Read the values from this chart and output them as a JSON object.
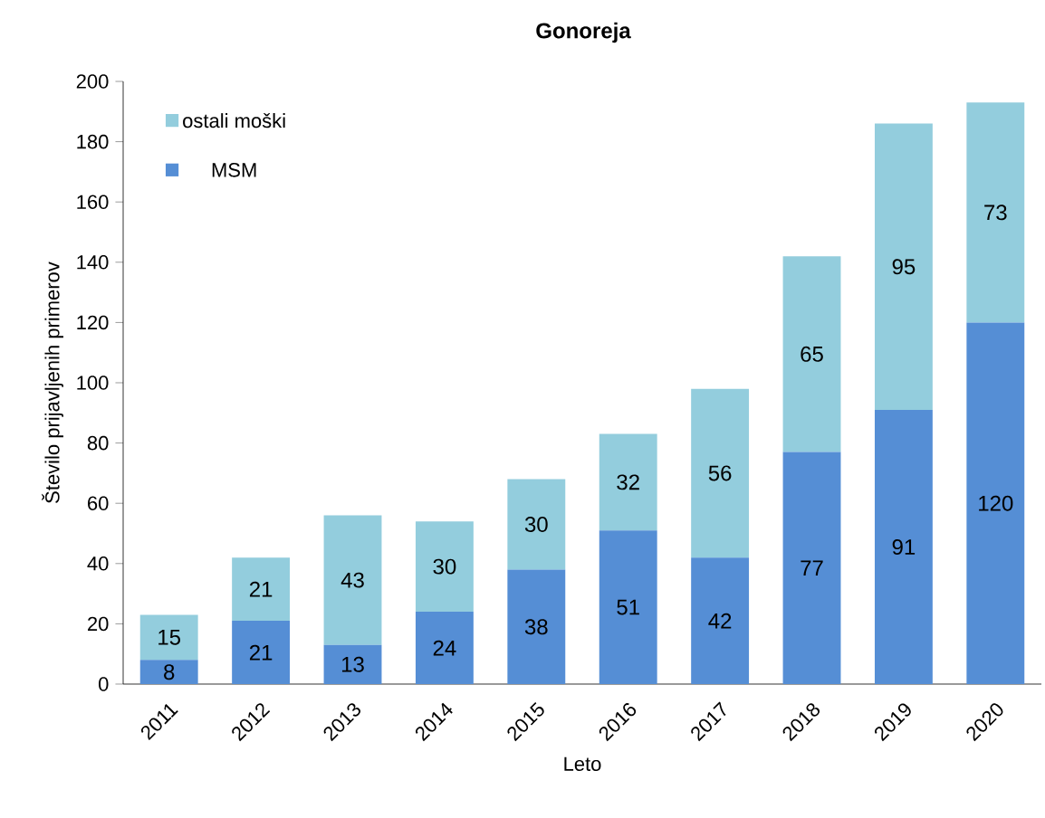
{
  "chart_data": {
    "type": "bar",
    "title": "Gonoreja",
    "xlabel": "Leto",
    "ylabel": "Število prijavljenih primerov",
    "categories": [
      "2011",
      "2012",
      "2013",
      "2014",
      "2015",
      "2016",
      "2017",
      "2018",
      "2019",
      "2020"
    ],
    "series": [
      {
        "name": "MSM",
        "color": "#558ed5",
        "values": [
          8,
          21,
          13,
          24,
          38,
          51,
          42,
          77,
          91,
          120
        ]
      },
      {
        "name": "ostali moški",
        "color": "#93cddd",
        "values": [
          15,
          21,
          43,
          30,
          30,
          32,
          56,
          65,
          95,
          73
        ]
      }
    ],
    "stacked": true,
    "data_labels": true,
    "legend": "top left",
    "ylim": [
      0,
      200
    ],
    "yticks": [
      0,
      20,
      40,
      60,
      80,
      100,
      120,
      140,
      160,
      180,
      200
    ]
  }
}
